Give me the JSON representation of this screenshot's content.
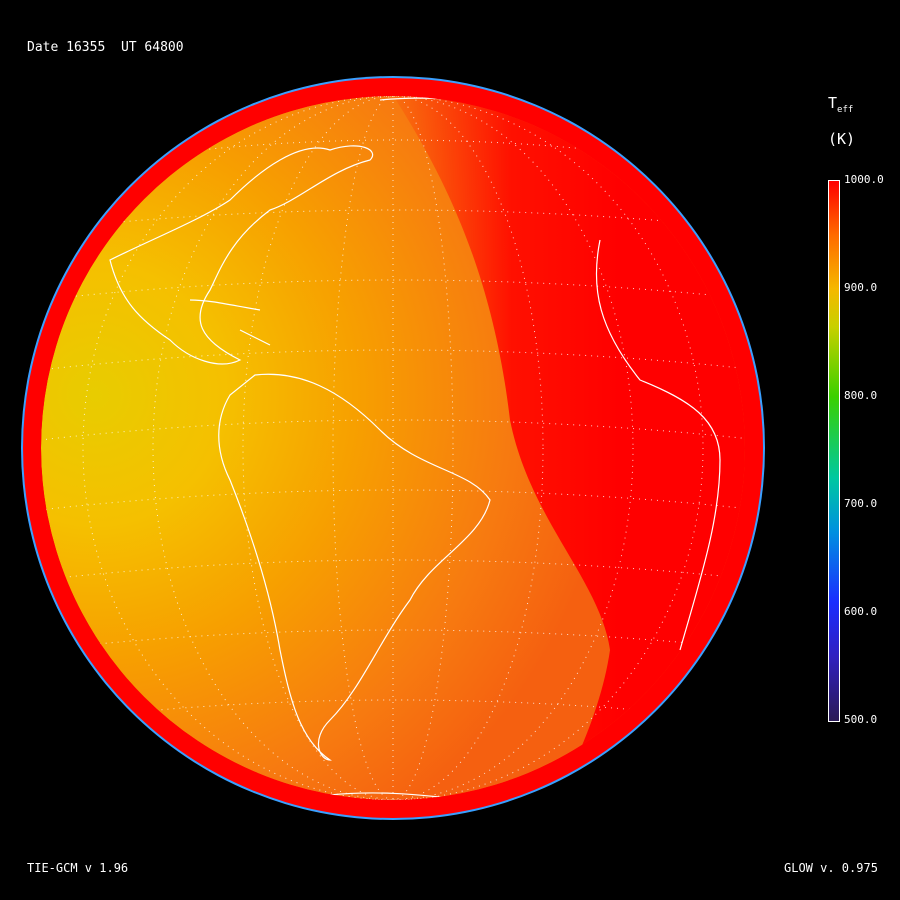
{
  "header": {
    "date_label": "Date",
    "date": "16355",
    "ut_label": "UT",
    "ut": "64800"
  },
  "colorbar": {
    "variable": "T",
    "variable_subscript": "eff",
    "units": "(K)",
    "ticks": [
      "1000.0",
      "900.0",
      "800.0",
      "700.0",
      "600.0",
      "500.0"
    ],
    "range": [
      500,
      1000
    ],
    "colors": {
      "max": "#ff0000",
      "900": "#f5b800",
      "800": "#3ad000",
      "700": "#00c8a0",
      "600": "#1a2cff",
      "min": "#2a1a55"
    }
  },
  "map": {
    "projection": "orthographic",
    "center_region": "Atlantic / South America",
    "graticule": "dotted",
    "coastlines": "white"
  },
  "footer": {
    "model_left": "TIE-GCM v 1.96",
    "model_right": "GLOW v. 0.975"
  }
}
